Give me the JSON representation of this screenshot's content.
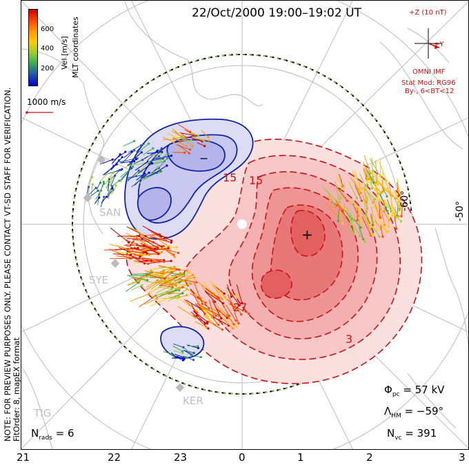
{
  "title": "22/Oct/2000 19:00–19:02 UT",
  "side_note": "NOTE: FOR PREVIEW PURPOSES ONLY. PLEASE CONTACT VT-SD STAFF FOR VERIFICATION.",
  "fit_order": "FitOrder: 8, mapEX format",
  "coords_label": "MLT coordinates",
  "colorbar": {
    "label": "Vel [m/s]",
    "ticks": [
      "600",
      "400",
      "200"
    ],
    "colors": [
      "#cc0000",
      "#ff4400",
      "#ff9900",
      "#ffcc00",
      "#99cc33",
      "#33aa55",
      "#2255aa",
      "#0000cc"
    ]
  },
  "scale_label": "1000 m/s",
  "imf": {
    "z_label": "+Z (10 nT)",
    "y_label": "+Y",
    "source": "OMNI IMF",
    "model": "Stat Mod: RG96",
    "condition": "By-, 6<BT<12"
  },
  "latitude_labels": [
    "-60°",
    "-50°"
  ],
  "stations": [
    "SAN",
    "SYE",
    "KER",
    "TIG"
  ],
  "contour_labels": [
    "15",
    "15",
    "27",
    "3",
    "-"
  ],
  "symbols": {
    "min": "−",
    "max": "+"
  },
  "stats": {
    "phi_pc_label": "Φ",
    "phi_pc_sub": "pc",
    "phi_pc_value": "= 57 kV",
    "lambda_hm_label": "Λ",
    "lambda_hm_sub": "HM",
    "lambda_hm_value": "= −59°",
    "n_vc_label": "N",
    "n_vc_sub": "vc",
    "n_vc_value": "= 391",
    "n_rads_label": "N",
    "n_rads_sub": "rads",
    "n_rads_value": "= 6"
  },
  "mlt_ticks": [
    "21",
    "22",
    "23",
    "0",
    "1",
    "2",
    "3"
  ],
  "colors": {
    "positive_contour": "#cc1111",
    "negative_contour": "#1122aa",
    "positive_fill": "#f08080",
    "negative_fill": "#b0b0ea",
    "coast": "#c8c8c8",
    "grid": "#bbbbbb"
  }
}
